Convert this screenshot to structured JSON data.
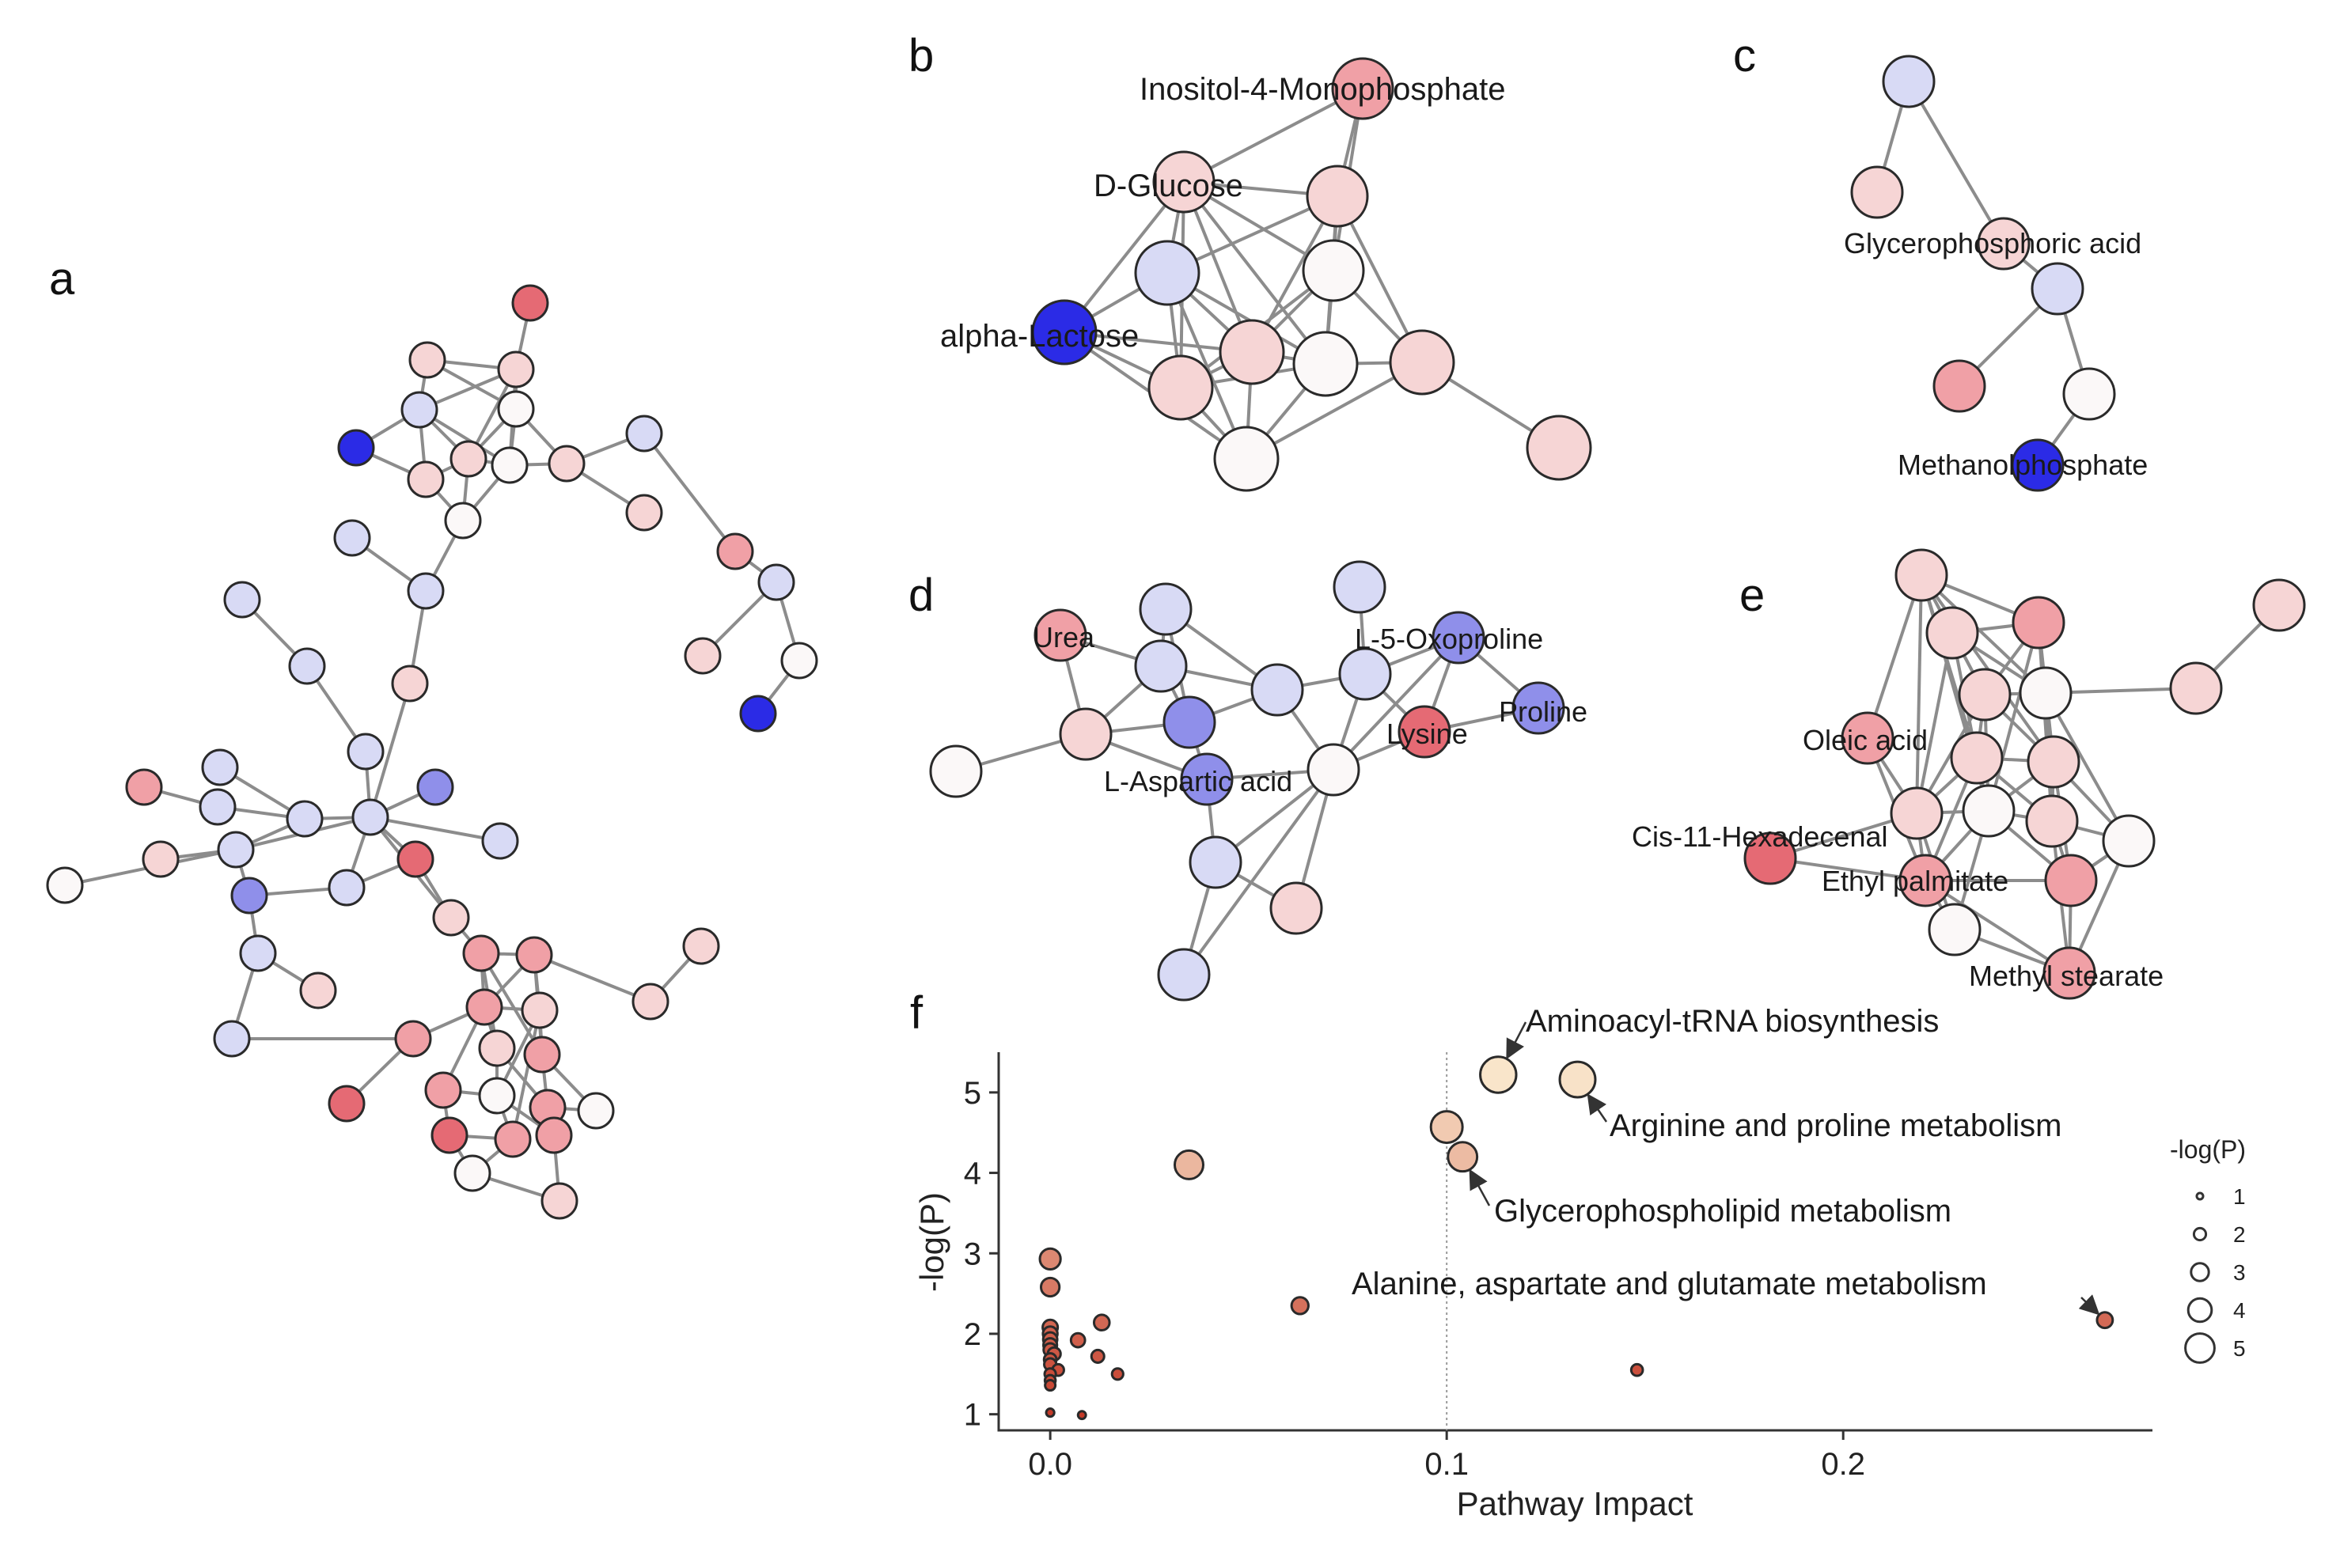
{
  "panels": {
    "a": {
      "letter": "a"
    },
    "b": {
      "letter": "b",
      "labels": [
        "Inositol-4-Monophosphate",
        "D-Glucose",
        "alpha-Lactose"
      ]
    },
    "c": {
      "letter": "c",
      "labels": [
        "Glycerophosphoric acid",
        "Methanolphosphate"
      ]
    },
    "d": {
      "letter": "d",
      "labels": [
        "Urea",
        "L-5-Oxoproline",
        "Proline",
        "Lysine",
        "L-Aspartic acid"
      ]
    },
    "e": {
      "letter": "e",
      "labels": [
        "Oleic acid",
        "Cis-11-Hexadecenal",
        "Ethyl palmitate",
        "Methyl stearate"
      ]
    },
    "f": {
      "letter": "f"
    }
  },
  "colors": {
    "strong_blue": "#2b2be6",
    "mid_blue": "#8f8fea",
    "light_blue": "#d8daf5",
    "white": "#fbf8f8",
    "light_red": "#f6d5d5",
    "mid_red": "#f0a0a6",
    "strong_red": "#e56a74",
    "edge": "#8c8c8c"
  },
  "chart_data": {
    "type": "scatter",
    "xlabel": "Pathway Impact",
    "ylabel": "-log(P)",
    "xlim": [
      -0.013,
      0.278
    ],
    "ylim": [
      0.8,
      5.5
    ],
    "xticks": [
      "0.0",
      "0.1",
      "0.2"
    ],
    "yticks": [
      "1",
      "2",
      "3",
      "4",
      "5"
    ],
    "vline": 0.1,
    "legend": {
      "title": "-log(P)",
      "sizes": [
        "1",
        "2",
        "3",
        "4",
        "5"
      ],
      "placement": "right"
    },
    "points": [
      {
        "x": 0.113,
        "y": 5.22
      },
      {
        "x": 0.133,
        "y": 5.16
      },
      {
        "x": 0.1,
        "y": 4.57
      },
      {
        "x": 0.104,
        "y": 4.2
      },
      {
        "x": 0.035,
        "y": 4.1
      },
      {
        "x": 0.0,
        "y": 2.93
      },
      {
        "x": 0.0,
        "y": 2.58
      },
      {
        "x": 0.063,
        "y": 2.35
      },
      {
        "x": 0.266,
        "y": 2.17
      },
      {
        "x": 0.013,
        "y": 2.14
      },
      {
        "x": 0.0,
        "y": 2.08
      },
      {
        "x": 0.0,
        "y": 2.0
      },
      {
        "x": 0.0,
        "y": 1.93
      },
      {
        "x": 0.007,
        "y": 1.92
      },
      {
        "x": 0.0,
        "y": 1.86
      },
      {
        "x": 0.0,
        "y": 1.8
      },
      {
        "x": 0.001,
        "y": 1.75
      },
      {
        "x": 0.012,
        "y": 1.72
      },
      {
        "x": 0.0,
        "y": 1.68
      },
      {
        "x": 0.0,
        "y": 1.62
      },
      {
        "x": 0.002,
        "y": 1.55
      },
      {
        "x": 0.148,
        "y": 1.55
      },
      {
        "x": 0.0,
        "y": 1.5
      },
      {
        "x": 0.017,
        "y": 1.5
      },
      {
        "x": 0.0,
        "y": 1.42
      },
      {
        "x": 0.0,
        "y": 1.36
      },
      {
        "x": 0.0,
        "y": 1.02
      },
      {
        "x": 0.008,
        "y": 0.99
      }
    ],
    "annotations": [
      {
        "text": "Aminoacyl-tRNA biosynthesis",
        "x": 0.113,
        "y": 5.22
      },
      {
        "text": "Arginine and proline metabolism",
        "x": 0.133,
        "y": 5.16
      },
      {
        "text": "Glycerophospholipid metabolism",
        "x": 0.104,
        "y": 4.2
      },
      {
        "text": "Alanine, aspartate and glutamate metabolism",
        "x": 0.266,
        "y": 2.17
      }
    ]
  }
}
